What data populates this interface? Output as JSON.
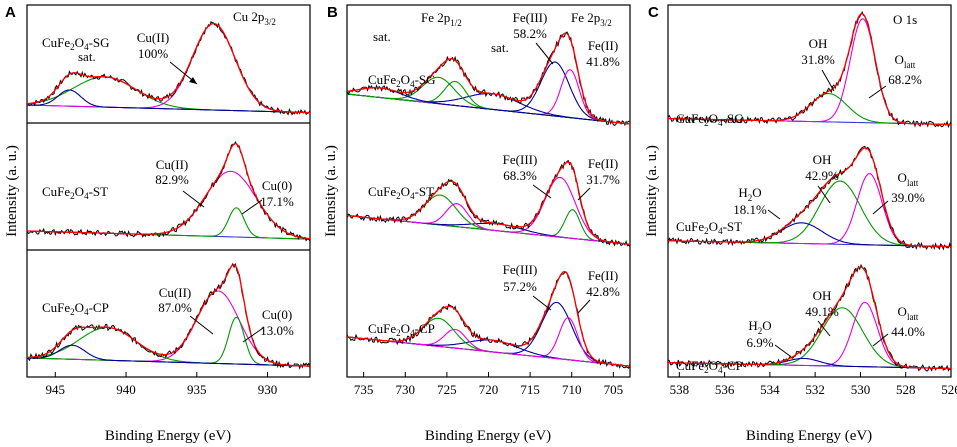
{
  "figure": {
    "ylabel": "Intensity (a. u.)",
    "xlabel": "Binding Energy (eV)"
  },
  "chart_data": [
    {
      "panel": "A",
      "type": "line",
      "title": "Cu 2p3/2",
      "xlabel": "Binding Energy (eV)",
      "ylabel": "Intensity (a. u.)",
      "xlim": [
        947,
        927
      ],
      "xticks": [
        945,
        940,
        935,
        930
      ],
      "rows": [
        {
          "sample": "CuFe2O4-SG",
          "peaks": [
            {
              "center": 933.8,
              "width": 1.5,
              "height": 0.8,
              "color": "#e600e6"
            },
            {
              "center": 941.5,
              "width": 2.2,
              "height": 0.28,
              "color": "#009900"
            },
            {
              "center": 944.0,
              "width": 0.8,
              "height": 0.15,
              "color": "#000099"
            }
          ],
          "baseline": [
            0.05,
            0.12
          ],
          "annotations": [
            {
              "label": "Cu(II)",
              "value": "100%"
            },
            {
              "label": "sat."
            },
            {
              "label": "Cu 2p",
              "sub": "3/2"
            }
          ]
        },
        {
          "sample": "CuFe2O4-ST",
          "peaks": [
            {
              "center": 932.6,
              "width": 1.8,
              "height": 0.56,
              "color": "#e600e6"
            },
            {
              "center": 932.2,
              "width": 0.55,
              "height": 0.25,
              "color": "#009900"
            }
          ],
          "baseline": [
            0.05,
            0.12
          ],
          "annotations": [
            {
              "label": "Cu(II)",
              "value": "82.9%"
            },
            {
              "label": "Cu(0)",
              "value": "17.1%"
            }
          ]
        },
        {
          "sample": "CuFe2O4-CP",
          "peaks": [
            {
              "center": 933.5,
              "width": 1.5,
              "height": 0.62,
              "color": "#e600e6"
            },
            {
              "center": 932.2,
              "width": 0.55,
              "height": 0.4,
              "color": "#009900"
            },
            {
              "center": 941.3,
              "width": 2.0,
              "height": 0.28,
              "color": "#009900"
            },
            {
              "center": 943.8,
              "width": 0.9,
              "height": 0.12,
              "color": "#000099"
            }
          ],
          "baseline": [
            0.05,
            0.12
          ],
          "annotations": [
            {
              "label": "Cu(II)",
              "value": "87.0%"
            },
            {
              "label": "Cu(0)",
              "value": "13.0%"
            }
          ]
        }
      ]
    },
    {
      "panel": "B",
      "type": "line",
      "title": "Fe 2p3/2",
      "xlabel": "Binding Energy (eV)",
      "ylabel": "Intensity (a. u.)",
      "xlim": [
        737,
        703
      ],
      "xticks": [
        735,
        730,
        725,
        720,
        715,
        710,
        705
      ],
      "rows": [
        {
          "sample": "CuFe2O4-SG",
          "peaks": [
            {
              "center": 712.0,
              "width": 1.7,
              "height": 0.45,
              "color": "#000099"
            },
            {
              "center": 710.2,
              "width": 1.1,
              "height": 0.4,
              "color": "#e600e6"
            },
            {
              "center": 719.5,
              "width": 3.2,
              "height": 0.13,
              "color": "#000099"
            },
            {
              "center": 726.0,
              "width": 1.9,
              "height": 0.22,
              "color": "#009900"
            },
            {
              "center": 724.0,
              "width": 1.3,
              "height": 0.2,
              "color": "#009900"
            },
            {
              "center": 733.0,
              "width": 2.5,
              "height": 0.08,
              "color": "#000099"
            }
          ],
          "baseline": [
            0.05,
            0.3
          ],
          "annotations": [
            {
              "label": "Fe(III)",
              "value": "58.2%"
            },
            {
              "label": "Fe(II)",
              "value": "41.8%"
            },
            {
              "label": "Fe 2p",
              "sub": "1/2"
            },
            {
              "label": "Fe 2p",
              "sub": "3/2"
            },
            {
              "label": "sat."
            },
            {
              "label": "sat."
            }
          ]
        },
        {
          "sample": "CuFe2O4-ST",
          "peaks": [
            {
              "center": 711.4,
              "width": 1.8,
              "height": 0.52,
              "color": "#e600e6"
            },
            {
              "center": 709.9,
              "width": 0.9,
              "height": 0.25,
              "color": "#009900"
            },
            {
              "center": 719.0,
              "width": 3.0,
              "height": 0.06,
              "color": "#000099"
            },
            {
              "center": 725.8,
              "width": 1.9,
              "height": 0.26,
              "color": "#009900"
            },
            {
              "center": 723.8,
              "width": 1.3,
              "height": 0.2,
              "color": "#e600e6"
            }
          ],
          "baseline": [
            0.05,
            0.3
          ],
          "annotations": [
            {
              "label": "Fe(III)",
              "value": "68.3%"
            },
            {
              "label": "Fe(II)",
              "value": "31.7%"
            }
          ]
        },
        {
          "sample": "CuFe2O4-CP",
          "peaks": [
            {
              "center": 711.8,
              "width": 1.8,
              "height": 0.48,
              "color": "#000099"
            },
            {
              "center": 710.4,
              "width": 1.1,
              "height": 0.36,
              "color": "#e600e6"
            },
            {
              "center": 719.5,
              "width": 3.0,
              "height": 0.1,
              "color": "#000099"
            },
            {
              "center": 726.0,
              "width": 1.9,
              "height": 0.24,
              "color": "#009900"
            },
            {
              "center": 724.0,
              "width": 1.3,
              "height": 0.16,
              "color": "#e600e6"
            }
          ],
          "baseline": [
            0.05,
            0.3
          ],
          "annotations": [
            {
              "label": "Fe(III)",
              "value": "57.2%"
            },
            {
              "label": "Fe(II)",
              "value": "42.8%"
            }
          ]
        }
      ]
    },
    {
      "panel": "C",
      "type": "line",
      "title": "O 1s",
      "xlabel": "Binding Energy (eV)",
      "ylabel": "Intensity (a. u.)",
      "xlim": [
        538.5,
        526
      ],
      "xticks": [
        538,
        536,
        534,
        532,
        530,
        528,
        526
      ],
      "rows": [
        {
          "sample": "CuFe2O4-SG",
          "peaks": [
            {
              "center": 529.9,
              "width": 0.55,
              "height": 0.88,
              "color": "#e600e6"
            },
            {
              "center": 531.4,
              "width": 0.8,
              "height": 0.24,
              "color": "#009900"
            }
          ],
          "baseline": [
            0.03,
            0.08
          ],
          "annotations": [
            {
              "label": "OH",
              "value": "31.8%"
            },
            {
              "label": "O",
              "sub": "latt",
              "value": "68.2%"
            },
            {
              "label": "O 1s"
            }
          ]
        },
        {
          "sample": "CuFe2O4-ST",
          "peaks": [
            {
              "center": 529.6,
              "width": 0.55,
              "height": 0.62,
              "color": "#e600e6"
            },
            {
              "center": 530.9,
              "width": 0.9,
              "height": 0.55,
              "color": "#009900"
            },
            {
              "center": 532.6,
              "width": 0.9,
              "height": 0.18,
              "color": "#000099"
            }
          ],
          "baseline": [
            0.03,
            0.08
          ],
          "annotations": [
            {
              "label": "OH",
              "value": "42.9%"
            },
            {
              "label": "H",
              "sub": "2",
              "label2": "O",
              "value": "18.1%"
            },
            {
              "label": "O",
              "sub": "latt",
              "value": "39.0%"
            }
          ]
        },
        {
          "sample": "CuFe2O4-CP",
          "peaks": [
            {
              "center": 529.8,
              "width": 0.55,
              "height": 0.55,
              "color": "#e600e6"
            },
            {
              "center": 530.8,
              "width": 0.9,
              "height": 0.5,
              "color": "#009900"
            },
            {
              "center": 532.5,
              "width": 0.7,
              "height": 0.06,
              "color": "#000099"
            }
          ],
          "baseline": [
            0.03,
            0.08
          ],
          "annotations": [
            {
              "label": "OH",
              "value": "49.1%"
            },
            {
              "label": "H",
              "sub": "2",
              "label2": "O",
              "value": "6.9%"
            },
            {
              "label": "O",
              "sub": "latt",
              "value": "44.0%"
            }
          ]
        }
      ]
    }
  ],
  "colors": {
    "experimental": "#000000",
    "envelope": "#ff0000",
    "background": "#3b3bd9"
  }
}
